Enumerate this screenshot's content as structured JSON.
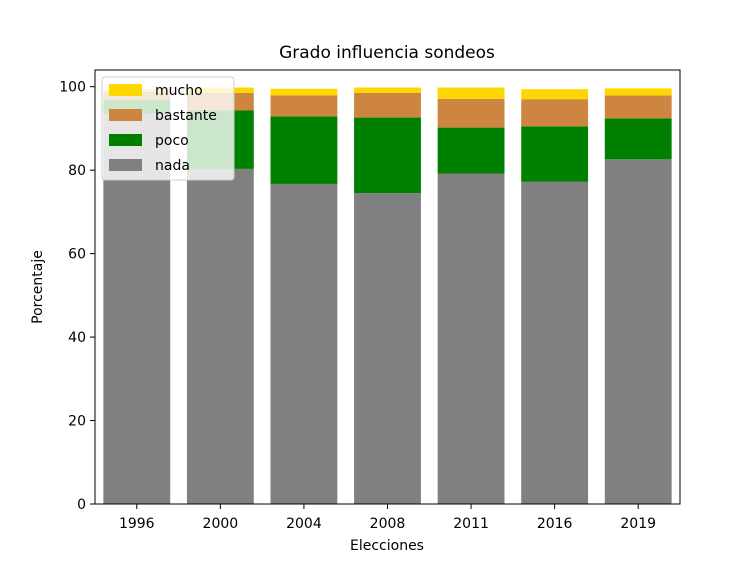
{
  "chart_data": {
    "type": "bar",
    "stacked": true,
    "title": "Grado influencia sondeos",
    "xlabel": "Elecciones",
    "ylabel": "Porcentaje",
    "categories": [
      "1996",
      "2000",
      "2004",
      "2008",
      "2011",
      "2016",
      "2019"
    ],
    "ylim": [
      0,
      104
    ],
    "yticks": [
      0,
      20,
      40,
      60,
      80,
      100
    ],
    "grid": false,
    "legend_position": "top-left",
    "series": [
      {
        "name": "nada",
        "color": "#808080",
        "values": [
          93.5,
          80.3,
          76.7,
          74.5,
          79.2,
          77.2,
          82.6
        ]
      },
      {
        "name": "poco",
        "color": "#008000",
        "values": [
          3.3,
          14.0,
          16.2,
          18.1,
          11.0,
          13.3,
          9.8
        ]
      },
      {
        "name": "bastante",
        "color": "#cd853f",
        "values": [
          2.0,
          4.2,
          5.0,
          5.9,
          6.9,
          6.5,
          5.5
        ]
      },
      {
        "name": "mucho",
        "color": "#ffd700",
        "values": [
          0.6,
          1.3,
          1.6,
          1.3,
          2.7,
          2.4,
          1.7
        ]
      }
    ],
    "legend_order": [
      "mucho",
      "bastante",
      "poco",
      "nada"
    ]
  }
}
